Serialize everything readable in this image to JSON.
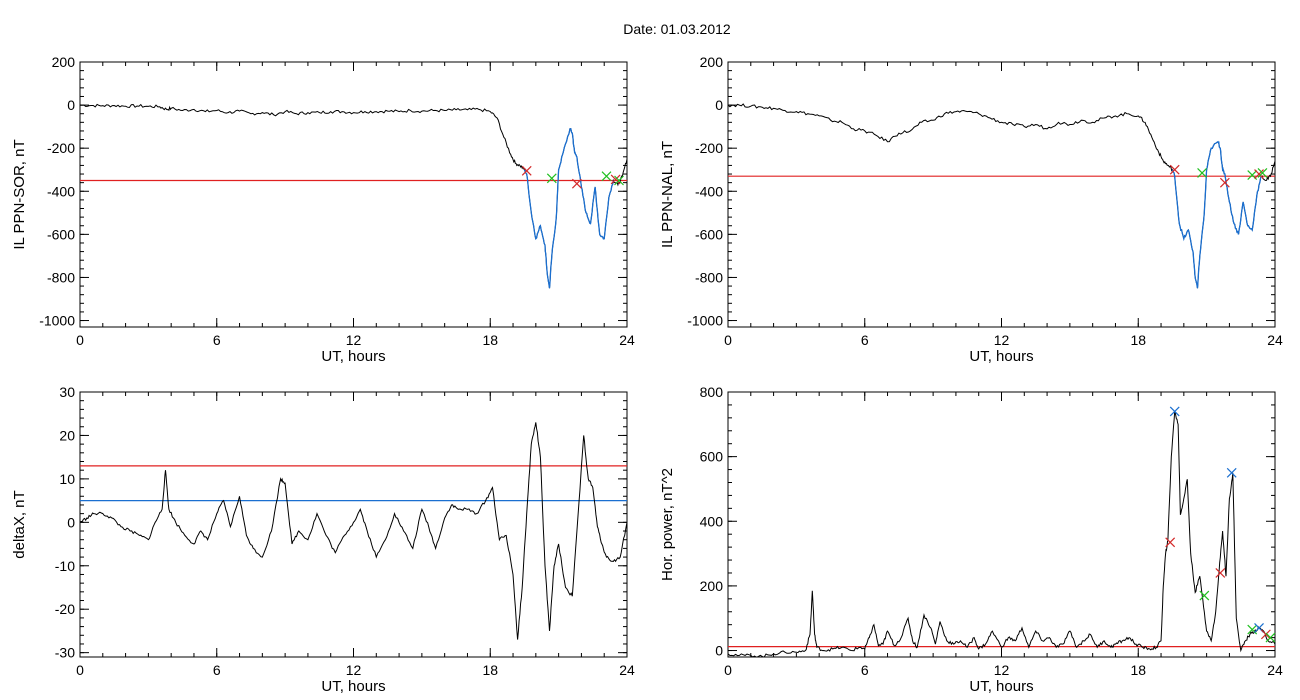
{
  "header": {
    "date_label": "Date:  01.03.2012"
  },
  "colors": {
    "threshold_red": "#e02020",
    "threshold_blue": "#1a6fd0",
    "trace": "#000000",
    "highlight": "#1a6fd0",
    "marker_red": "#d42a2a",
    "marker_green": "#1fbf1f",
    "marker_blue": "#1a6fd0"
  },
  "chart_data": [
    {
      "id": "p1",
      "type": "line",
      "xlabel": "UT, hours",
      "ylabel": "IL PPN-SOR, nT",
      "xlim": [
        0,
        24
      ],
      "ylim": [
        -1030,
        200
      ],
      "xticks": [
        0,
        6,
        12,
        18,
        24
      ],
      "xtick_labels": [
        "0",
        "6",
        "12",
        "18",
        "24"
      ],
      "yticks": [
        200,
        0,
        -200,
        -400,
        -600,
        -800,
        -1000
      ],
      "ytick_labels": [
        "200",
        "0",
        "-200",
        "-400",
        "-600",
        "-800",
        "-1000"
      ],
      "series": [
        {
          "x": [
            0,
            0.5,
            1,
            1.5,
            2,
            2.5,
            3,
            3.5,
            3.8,
            4,
            4.5,
            5,
            5.5,
            6,
            6.5,
            7,
            7.5,
            8,
            8.5,
            9,
            9.5,
            10,
            10.5,
            11,
            11.5,
            12,
            12.5,
            13,
            13.5,
            14,
            14.5,
            15,
            15.5,
            16,
            16.5,
            17,
            17.5,
            18,
            18.3,
            18.6,
            18.9,
            19.1,
            19.3,
            19.5,
            19.6,
            19.8,
            20.0,
            20.2,
            20.4,
            20.5,
            20.6,
            20.7,
            20.9,
            21.0,
            21.2,
            21.5,
            21.6,
            21.7,
            21.8,
            22.0,
            22.2,
            22.4,
            22.6,
            22.8,
            23.0,
            23.2,
            23.4,
            23.6,
            23.8,
            24
          ],
          "y": [
            0,
            -2,
            -3,
            -2,
            -5,
            -4,
            -6,
            -8,
            -20,
            -15,
            -25,
            -20,
            -30,
            -25,
            -35,
            -28,
            -40,
            -35,
            -45,
            -30,
            -40,
            -35,
            -35,
            -30,
            -30,
            -35,
            -30,
            -30,
            -28,
            -30,
            -25,
            -28,
            -25,
            -25,
            -22,
            -22,
            -20,
            -30,
            -60,
            -150,
            -230,
            -270,
            -280,
            -300,
            -320,
            -500,
            -620,
            -560,
            -650,
            -780,
            -850,
            -700,
            -520,
            -300,
            -220,
            -110,
            -130,
            -220,
            -240,
            -380,
            -500,
            -550,
            -380,
            -600,
            -620,
            -430,
            -350,
            -370,
            -330,
            -250
          ]
        }
      ],
      "highlight_range": [
        19.5,
        23.4
      ],
      "threshold": {
        "y": -350
      },
      "markers": [
        {
          "x": 19.6,
          "y": -305,
          "color": "red"
        },
        {
          "x": 20.7,
          "y": -340,
          "color": "green"
        },
        {
          "x": 21.8,
          "y": -365,
          "color": "red"
        },
        {
          "x": 23.1,
          "y": -330,
          "color": "green"
        },
        {
          "x": 23.5,
          "y": -345,
          "color": "red"
        },
        {
          "x": 23.65,
          "y": -350,
          "color": "green"
        }
      ]
    },
    {
      "id": "p2",
      "type": "line",
      "xlabel": "UT, hours",
      "ylabel": "IL PPN-NAL, nT",
      "xlim": [
        0,
        24
      ],
      "ylim": [
        -1030,
        200
      ],
      "xticks": [
        0,
        6,
        12,
        18,
        24
      ],
      "xtick_labels": [
        "0",
        "6",
        "12",
        "18",
        "24"
      ],
      "yticks": [
        200,
        0,
        -200,
        -400,
        -600,
        -800,
        -1000
      ],
      "ytick_labels": [
        "200",
        "0",
        "-200",
        "-400",
        "-600",
        "-800",
        "-1000"
      ],
      "series": [
        {
          "x": [
            0,
            0.5,
            1,
            1.5,
            2,
            2.5,
            3,
            3.5,
            4,
            4.5,
            5,
            5.5,
            6,
            6.5,
            7,
            7.5,
            8,
            8.5,
            9,
            9.5,
            10,
            10.5,
            11,
            11.5,
            12,
            12.5,
            13,
            13.5,
            14,
            14.5,
            15,
            15.5,
            16,
            16.5,
            17,
            17.5,
            18,
            18.3,
            18.6,
            18.9,
            19.1,
            19.3,
            19.5,
            19.6,
            19.8,
            20.0,
            20.2,
            20.4,
            20.5,
            20.6,
            20.7,
            20.9,
            21.0,
            21.2,
            21.5,
            21.6,
            21.7,
            21.8,
            22.0,
            22.2,
            22.4,
            22.6,
            22.8,
            23.0,
            23.2,
            23.4,
            23.6,
            23.8,
            24
          ],
          "y": [
            0,
            0,
            -5,
            -10,
            -15,
            -25,
            -30,
            -40,
            -50,
            -70,
            -80,
            -110,
            -120,
            -140,
            -170,
            -130,
            -120,
            -80,
            -70,
            -40,
            -30,
            -30,
            -40,
            -60,
            -80,
            -90,
            -100,
            -90,
            -110,
            -80,
            -90,
            -70,
            -80,
            -60,
            -50,
            -40,
            -50,
            -80,
            -150,
            -220,
            -260,
            -280,
            -300,
            -330,
            -550,
            -620,
            -580,
            -680,
            -800,
            -850,
            -700,
            -500,
            -300,
            -200,
            -170,
            -200,
            -300,
            -320,
            -450,
            -550,
            -600,
            -450,
            -560,
            -580,
            -420,
            -330,
            -350,
            -330,
            -260
          ]
        }
      ],
      "highlight_range": [
        19.5,
        23.4
      ],
      "threshold": {
        "y": -330
      },
      "markers": [
        {
          "x": 19.6,
          "y": -300,
          "color": "red"
        },
        {
          "x": 20.8,
          "y": -315,
          "color": "green"
        },
        {
          "x": 21.8,
          "y": -360,
          "color": "red"
        },
        {
          "x": 23.0,
          "y": -325,
          "color": "green"
        },
        {
          "x": 23.3,
          "y": -320,
          "color": "red"
        },
        {
          "x": 23.45,
          "y": -315,
          "color": "green"
        }
      ]
    },
    {
      "id": "p3",
      "type": "line",
      "xlabel": "UT, hours",
      "ylabel": "deltaX, nT",
      "xlim": [
        0,
        24
      ],
      "ylim": [
        -31,
        30
      ],
      "xticks": [
        0,
        6,
        12,
        18,
        24
      ],
      "xtick_labels": [
        "0",
        "6",
        "12",
        "18",
        "24"
      ],
      "yticks": [
        30,
        20,
        10,
        0,
        -10,
        -20,
        -30
      ],
      "ytick_labels": [
        "30",
        "20",
        "10",
        "0",
        "-10",
        "-20",
        "-30"
      ],
      "series": [
        {
          "x": [
            0,
            0.3,
            0.6,
            1,
            1.4,
            1.8,
            2.2,
            2.6,
            3,
            3.3,
            3.6,
            3.75,
            3.9,
            4.2,
            4.6,
            5,
            5.3,
            5.6,
            6,
            6.3,
            6.6,
            7,
            7.3,
            7.6,
            8,
            8.4,
            8.8,
            9.0,
            9.3,
            9.6,
            10,
            10.4,
            10.8,
            11.2,
            11.6,
            12,
            12.3,
            12.6,
            13,
            13.4,
            13.8,
            14.2,
            14.6,
            15,
            15.3,
            15.6,
            16,
            16.3,
            16.6,
            17,
            17.4,
            17.8,
            18.1,
            18.4,
            18.7,
            19,
            19.2,
            19.4,
            19.6,
            19.8,
            20.0,
            20.2,
            20.4,
            20.6,
            20.8,
            21.0,
            21.3,
            21.6,
            21.9,
            22.1,
            22.3,
            22.5,
            22.7,
            22.9,
            23.1,
            23.4,
            23.7,
            24
          ],
          "y": [
            0,
            1,
            2,
            2,
            1,
            -1,
            -2,
            -3,
            -4,
            0,
            3,
            12,
            3,
            0,
            -3,
            -5,
            -2,
            -4,
            2,
            5,
            -1,
            6,
            -3,
            -6,
            -8,
            -2,
            10,
            9,
            -5,
            -2,
            -4,
            2,
            -3,
            -7,
            -3,
            0,
            3,
            -2,
            -8,
            -4,
            2,
            -2,
            -6,
            3,
            -1,
            -6,
            1,
            4,
            3,
            3,
            2,
            5,
            8,
            -4,
            -3,
            -12,
            -27,
            -15,
            2,
            18,
            23,
            15,
            -10,
            -25,
            -10,
            -5,
            -15,
            -17,
            5,
            20,
            10,
            8,
            -1,
            -5,
            -8,
            -9,
            -8,
            0
          ]
        }
      ],
      "thresholds": [
        {
          "y": 13,
          "color": "red"
        },
        {
          "y": 5,
          "color": "blue"
        }
      ]
    },
    {
      "id": "p4",
      "type": "line",
      "xlabel": "UT, hours",
      "ylabel": "Hor. power, nT^2",
      "xlim": [
        0,
        24
      ],
      "ylim": [
        -20,
        800
      ],
      "xticks": [
        0,
        6,
        12,
        18,
        24
      ],
      "xtick_labels": [
        "0",
        "6",
        "12",
        "18",
        "24"
      ],
      "yticks": [
        800,
        600,
        400,
        200,
        0
      ],
      "ytick_labels": [
        "800",
        "600",
        "400",
        "200",
        "0"
      ],
      "series": [
        {
          "x": [
            0,
            0.5,
            1,
            1.5,
            2,
            2.5,
            3,
            3.4,
            3.6,
            3.7,
            3.8,
            3.9,
            4.2,
            4.6,
            5,
            5.4,
            5.8,
            6,
            6.2,
            6.4,
            6.6,
            6.8,
            7,
            7.3,
            7.6,
            7.9,
            8.1,
            8.3,
            8.6,
            8.9,
            9.1,
            9.3,
            9.6,
            9.9,
            10.2,
            10.5,
            10.8,
            11,
            11.3,
            11.6,
            12,
            12.3,
            12.6,
            12.9,
            13.2,
            13.5,
            13.8,
            14.1,
            14.4,
            14.7,
            15,
            15.3,
            15.6,
            15.9,
            16.2,
            16.5,
            16.8,
            17,
            17.3,
            17.6,
            17.9,
            18.2,
            18.5,
            18.8,
            19.0,
            19.1,
            19.2,
            19.3,
            19.45,
            19.6,
            19.75,
            19.85,
            20.0,
            20.15,
            20.3,
            20.5,
            20.7,
            20.9,
            21.0,
            21.2,
            21.4,
            21.55,
            21.7,
            21.85,
            22.0,
            22.15,
            22.3,
            22.5,
            22.7,
            22.9,
            23.1,
            23.3,
            23.5,
            23.7,
            24
          ],
          "y": [
            -10,
            -15,
            -15,
            -18,
            -10,
            -5,
            -5,
            0,
            50,
            185,
            50,
            10,
            0,
            5,
            10,
            0,
            10,
            5,
            40,
            80,
            15,
            20,
            60,
            15,
            40,
            100,
            30,
            10,
            110,
            70,
            20,
            90,
            30,
            20,
            30,
            10,
            40,
            5,
            20,
            60,
            10,
            40,
            30,
            70,
            10,
            60,
            30,
            40,
            10,
            20,
            60,
            10,
            30,
            50,
            10,
            30,
            10,
            20,
            30,
            40,
            20,
            10,
            5,
            10,
            30,
            200,
            300,
            340,
            600,
            740,
            700,
            420,
            470,
            530,
            300,
            180,
            230,
            120,
            60,
            30,
            120,
            250,
            370,
            230,
            470,
            550,
            100,
            0,
            30,
            50,
            60,
            70,
            60,
            30,
            20
          ]
        }
      ],
      "threshold": {
        "y": 12
      },
      "markers": [
        {
          "x": 19.4,
          "y": 335,
          "color": "red"
        },
        {
          "x": 19.6,
          "y": 740,
          "color": "blue"
        },
        {
          "x": 20.9,
          "y": 170,
          "color": "green"
        },
        {
          "x": 21.6,
          "y": 240,
          "color": "red"
        },
        {
          "x": 22.1,
          "y": 550,
          "color": "blue"
        },
        {
          "x": 23.0,
          "y": 65,
          "color": "green"
        },
        {
          "x": 23.3,
          "y": 70,
          "color": "blue"
        },
        {
          "x": 23.6,
          "y": 50,
          "color": "red"
        },
        {
          "x": 23.8,
          "y": 40,
          "color": "green"
        }
      ]
    }
  ]
}
